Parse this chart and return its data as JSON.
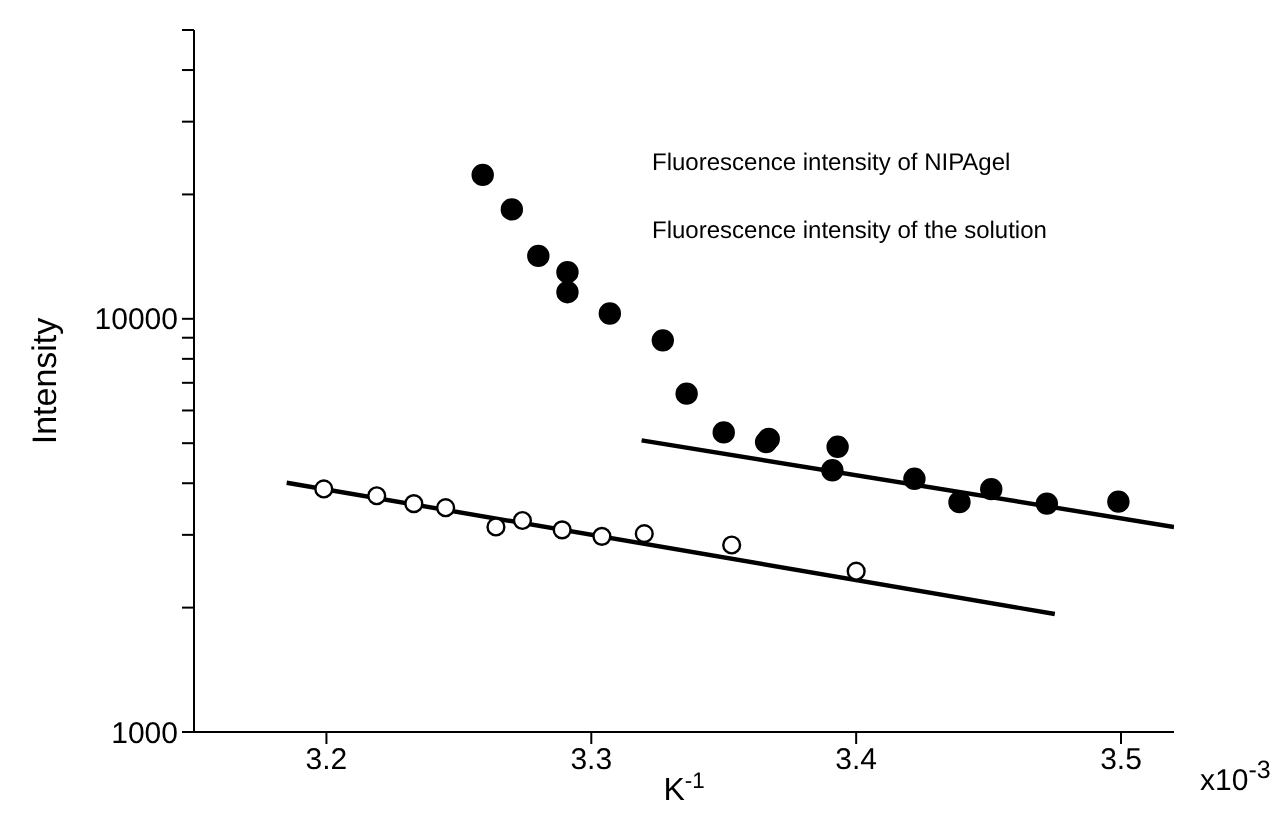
{
  "chart_data": {
    "type": "scatter",
    "xlabel": "K$^{-1}$",
    "ylabel": "Intensity",
    "log": "y",
    "marker": "circle",
    "annotations": [
      "Fluorescence intensity of NIPAgel",
      "Fluorescence intensity of the solution",
      "x10$^{-3}$"
    ],
    "xlim": [
      3.15,
      3.52
    ],
    "xticks": [
      3.2,
      3.3,
      3.4,
      3.5
    ],
    "ylim": [
      1000,
      50000
    ],
    "yticks": [
      1000,
      {
        "value": 2000,
        "label": null
      },
      {
        "value": 3000,
        "label": null
      },
      {
        "value": 4000,
        "label": null
      },
      {
        "value": 5000,
        "label": null
      },
      {
        "value": 6000,
        "label": null
      },
      {
        "value": 7000,
        "label": null
      },
      {
        "value": 8000,
        "label": null
      },
      {
        "value": 9000,
        "label": null
      },
      10000,
      {
        "value": 20000,
        "label": null
      },
      {
        "value": 30000,
        "label": null
      },
      {
        "value": 40000,
        "label": null
      },
      {
        "value": 50000,
        "label": null
      }
    ],
    "series": [
      {
        "color": "#000000",
        "x": [
          3.259,
          3.27,
          3.28,
          3.291,
          3.291,
          3.307,
          3.327,
          3.336,
          3.35,
          3.366,
          3.367,
          3.393,
          3.391,
          3.422,
          3.439,
          3.451,
          3.472,
          3.499
        ],
        "values": [
          22300,
          18400,
          14200,
          12970,
          11600,
          10300,
          8870,
          6590,
          5310,
          5030,
          5120,
          4900,
          4300,
          4100,
          3600,
          3870,
          3570,
          3610
        ]
      },
      {
        "color": "#000000",
        "x": [
          3.199,
          3.219,
          3.233,
          3.245,
          3.264,
          3.274,
          3.289,
          3.304,
          3.32,
          3.353,
          3.4
        ],
        "values": [
          3875,
          3730,
          3570,
          3490,
          3135,
          3250,
          3085,
          2975,
          3020,
          2835,
          2450
        ]
      },
      {
        "type": "line",
        "color": "#000000",
        "marker": "none",
        "x": [
          3.319,
          3.52
        ],
        "values": [
          5080,
          3135
        ]
      },
      {
        "type": "line",
        "color": "#000000",
        "marker": "none",
        "x": [
          3.185,
          3.475
        ],
        "values": [
          4010,
          1930
        ]
      }
    ]
  }
}
